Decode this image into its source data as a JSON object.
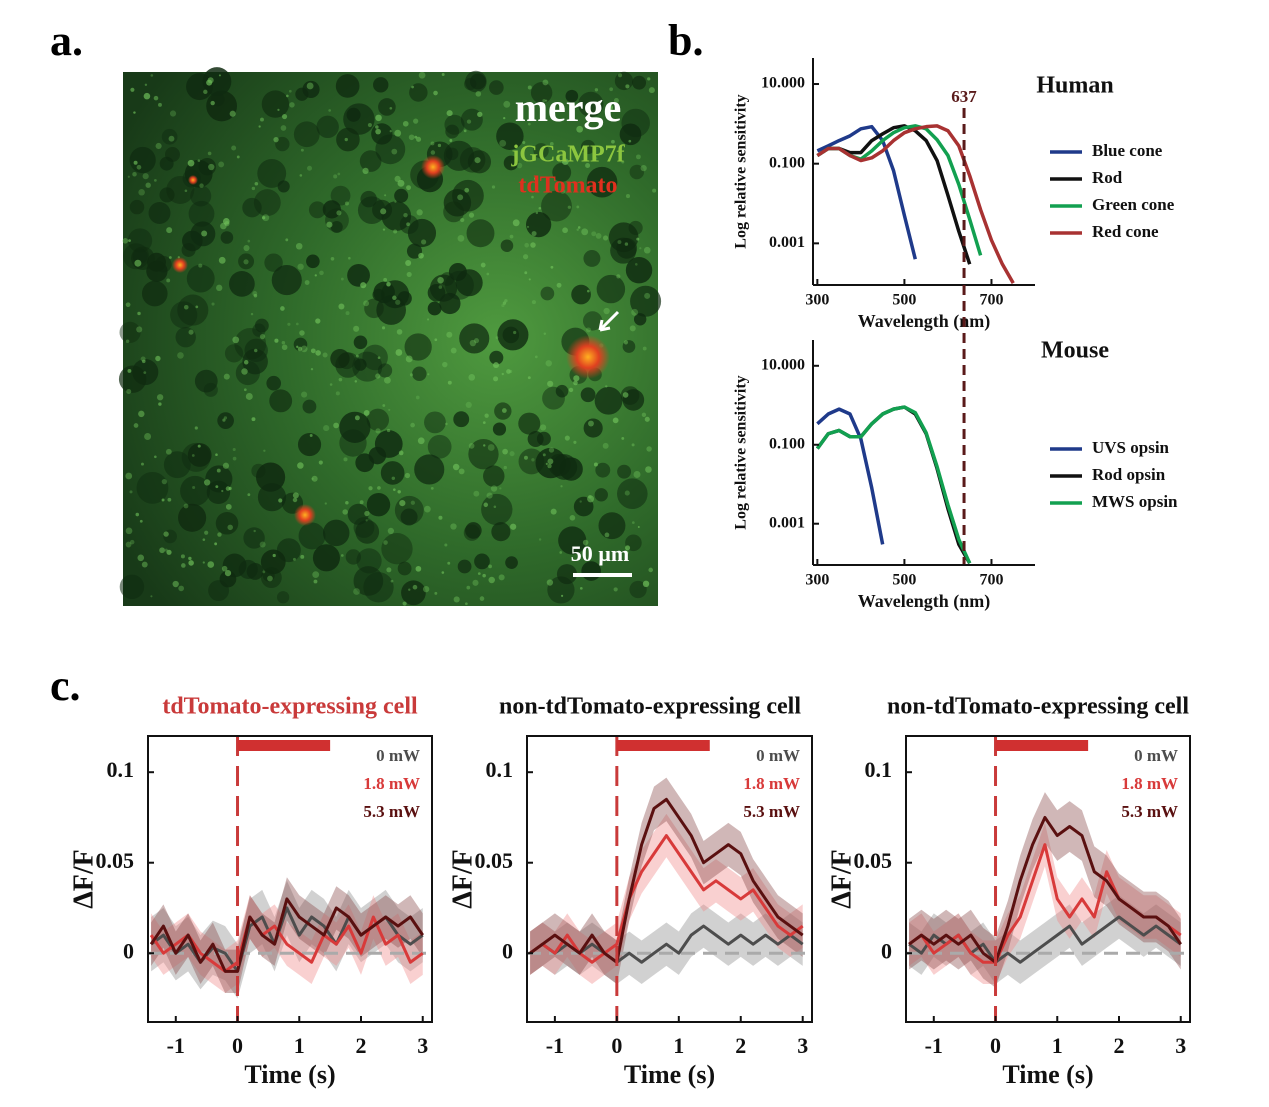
{
  "panel_labels": [
    "a.",
    "b.",
    "c."
  ],
  "image": {
    "labels": [
      {
        "text": "merge",
        "color": "#ffffff"
      },
      {
        "text": "jGCaMP7f",
        "color": "#8cc63f"
      },
      {
        "text": "tdTomato",
        "color": "#e0301e"
      }
    ],
    "scale_bar": "50 µm"
  },
  "chart_data": [
    {
      "type": "line",
      "title": "Human",
      "x_label": "Wavelength (nm)",
      "y_label": "Log relative sensitivity",
      "log_y": true,
      "box": false,
      "legend": "outside right",
      "vline": 637,
      "vline_color": "#5a1a1a",
      "x": [
        300,
        325,
        350,
        375,
        400,
        425,
        450,
        475,
        500,
        525,
        550,
        575,
        600,
        625,
        650,
        675,
        700,
        725,
        750
      ],
      "xlim": [
        290,
        800
      ],
      "xticks": [
        300,
        500,
        700
      ],
      "ylim": [
        9e-05,
        45
      ],
      "yticks": [
        {
          "value": 10,
          "label": "10.000"
        },
        {
          "value": 0.1,
          "label": "0.100"
        },
        {
          "value": 0.001,
          "label": "0.001"
        }
      ],
      "series": [
        {
          "name": "Blue cone",
          "color": "#1f3a8a",
          "values": [
            0.21,
            0.28,
            0.38,
            0.5,
            0.75,
            0.85,
            0.38,
            0.067,
            0.005,
            0.0004,
            null,
            null,
            null,
            null,
            null,
            null,
            null,
            null,
            null
          ]
        },
        {
          "name": "Rod",
          "color": "#111111",
          "values": [
            0.16,
            0.24,
            0.24,
            0.19,
            0.19,
            0.38,
            0.56,
            0.8,
            0.89,
            0.67,
            0.38,
            0.12,
            0.016,
            0.002,
            0.0003,
            null,
            null,
            null,
            null
          ]
        },
        {
          "name": "Green cone",
          "color": "#12a050",
          "values": [
            0.16,
            0.24,
            0.24,
            0.16,
            0.13,
            0.21,
            0.38,
            0.6,
            0.8,
            0.89,
            0.75,
            0.4,
            0.16,
            0.03,
            0.004,
            0.0005,
            null,
            null,
            null
          ]
        },
        {
          "name": "Red cone",
          "color": "#a83232",
          "values": [
            0.16,
            0.24,
            0.24,
            0.16,
            0.12,
            0.14,
            0.21,
            0.38,
            0.6,
            0.75,
            0.85,
            0.89,
            0.67,
            0.28,
            0.05,
            0.007,
            0.0012,
            0.0003,
            0.0001
          ]
        }
      ]
    },
    {
      "type": "line",
      "title": "Mouse",
      "x_label": "Wavelength (nm)",
      "y_label": "Log relative sensitivity",
      "log_y": true,
      "box": false,
      "legend": "outside right",
      "vline": 637,
      "vline_color": "#5a1a1a",
      "x": [
        300,
        325,
        350,
        375,
        400,
        425,
        450,
        475,
        500,
        525,
        550,
        575,
        600,
        625,
        650,
        675,
        700,
        725,
        750
      ],
      "xlim": [
        290,
        800
      ],
      "xticks": [
        300,
        500,
        700
      ],
      "ylim": [
        9e-05,
        45
      ],
      "yticks": [
        {
          "value": 10,
          "label": "10.000"
        },
        {
          "value": 0.1,
          "label": "0.100"
        },
        {
          "value": 0.001,
          "label": "0.001"
        }
      ],
      "series": [
        {
          "name": "UVS opsin",
          "color": "#1f3a8a",
          "values": [
            0.34,
            0.6,
            0.8,
            0.6,
            0.14,
            0.008,
            0.0003,
            null,
            null,
            null,
            null,
            null,
            null,
            null,
            null,
            null,
            null,
            null,
            null
          ]
        },
        {
          "name": "Rod opsin",
          "color": "#111111",
          "values": [
            0.08,
            0.19,
            0.23,
            0.16,
            0.16,
            0.34,
            0.6,
            0.8,
            0.9,
            0.6,
            0.19,
            0.025,
            0.0024,
            0.0003,
            0.0001,
            null,
            null,
            null,
            null
          ]
        },
        {
          "name": "MWS opsin",
          "color": "#12a050",
          "values": [
            0.08,
            0.19,
            0.23,
            0.16,
            0.16,
            0.34,
            0.6,
            0.8,
            0.9,
            0.65,
            0.2,
            0.028,
            0.003,
            0.0004,
            0.0001,
            null,
            null,
            null,
            null
          ]
        }
      ]
    },
    {
      "type": "line",
      "title": "tdTomato-expressing cell",
      "title_color": "#c93a3a",
      "x_label": "Time (s)",
      "y_label": "ΔF/F",
      "log_y": false,
      "box": true,
      "legend": "upper right",
      "vline": 0,
      "vline_color": "#c93a3a",
      "stimulus": [
        0,
        1.5
      ],
      "x": [
        -1.4,
        -1.2,
        -1.0,
        -0.8,
        -0.6,
        -0.4,
        -0.2,
        0,
        0.2,
        0.4,
        0.6,
        0.8,
        1.0,
        1.2,
        1.4,
        1.6,
        1.8,
        2.0,
        2.2,
        2.4,
        2.6,
        2.8,
        3.0
      ],
      "xlim": [
        -1.45,
        3.15
      ],
      "xticks": [
        -1,
        0,
        1,
        2,
        3
      ],
      "ylim": [
        -0.038,
        0.12
      ],
      "yticks": [
        0,
        0.05,
        0.1
      ],
      "series": [
        {
          "name": "0 mW",
          "color": "#4d4d4d",
          "band_color": "#8c8c8c",
          "error": 0.015,
          "values": [
            0.005,
            0.01,
            0,
            0.005,
            -0.005,
            0.003,
            0,
            -0.01,
            0.015,
            0.02,
            0.005,
            0.025,
            0.01,
            0.02,
            0.015,
            0.005,
            0.02,
            0.01,
            0.015,
            0.02,
            0.01,
            0.005,
            0.01
          ]
        },
        {
          "name": "1.8 mW",
          "color": "#d83a3a",
          "band_color": "#f08a8a",
          "error": 0.012,
          "values": [
            0.01,
            0,
            0.005,
            0.01,
            0,
            -0.005,
            -0.01,
            -0.005,
            0.02,
            0.01,
            0.015,
            0.005,
            0,
            -0.005,
            0.01,
            0.005,
            0.015,
            0,
            0.02,
            0.005,
            0.01,
            -0.005,
            0
          ]
        },
        {
          "name": "5.3 mW",
          "color": "#5a1010",
          "band_color": "#8a4a4a",
          "error": 0.012,
          "values": [
            0.005,
            0.015,
            0,
            0.01,
            -0.005,
            0.005,
            -0.01,
            -0.01,
            0.02,
            0.01,
            0.005,
            0.03,
            0.02,
            0.015,
            0.01,
            0.025,
            0.02,
            0.01,
            0.015,
            0.02,
            0.015,
            0.02,
            0.01
          ]
        }
      ]
    },
    {
      "type": "line",
      "title": "non-tdTomato-expressing cell",
      "title_color": "#111111",
      "x_label": "Time (s)",
      "y_label": "ΔF/F",
      "log_y": false,
      "box": true,
      "legend": "upper right",
      "vline": 0,
      "vline_color": "#c93a3a",
      "stimulus": [
        0,
        1.5
      ],
      "x": [
        -1.4,
        -1.2,
        -1.0,
        -0.8,
        -0.6,
        -0.4,
        -0.2,
        0,
        0.2,
        0.4,
        0.6,
        0.8,
        1.0,
        1.2,
        1.4,
        1.6,
        1.8,
        2.0,
        2.2,
        2.4,
        2.6,
        2.8,
        3.0
      ],
      "xlim": [
        -1.45,
        3.15
      ],
      "xticks": [
        -1,
        0,
        1,
        2,
        3
      ],
      "ylim": [
        -0.038,
        0.12
      ],
      "yticks": [
        0,
        0.05,
        0.1
      ],
      "series": [
        {
          "name": "0 mW",
          "color": "#4d4d4d",
          "band_color": "#8c8c8c",
          "error": 0.012,
          "values": [
            0,
            0.005,
            0,
            0.005,
            0,
            0.005,
            0,
            -0.005,
            0,
            -0.005,
            0,
            0.005,
            0,
            0.01,
            0.015,
            0.01,
            0.005,
            0.01,
            0.005,
            0.01,
            0.005,
            0.01,
            0.005
          ]
        },
        {
          "name": "1.8 mW",
          "color": "#d83a3a",
          "band_color": "#f08a8a",
          "error": 0.012,
          "values": [
            0,
            0.005,
            0,
            0.01,
            0,
            -0.005,
            0,
            0.005,
            0.03,
            0.045,
            0.055,
            0.065,
            0.055,
            0.045,
            0.035,
            0.04,
            0.035,
            0.03,
            0.035,
            0.025,
            0.015,
            0.01,
            0.015
          ]
        },
        {
          "name": "5.3 mW",
          "color": "#5a1010",
          "band_color": "#8a4a4a",
          "error": 0.012,
          "values": [
            0,
            0.005,
            0.01,
            0.005,
            0,
            0.01,
            0,
            -0.005,
            0.03,
            0.06,
            0.08,
            0.085,
            0.075,
            0.065,
            0.05,
            0.055,
            0.06,
            0.055,
            0.04,
            0.03,
            0.02,
            0.015,
            0.01
          ]
        }
      ]
    },
    {
      "type": "line",
      "title": "non-tdTomato-expressing cell",
      "title_color": "#111111",
      "x_label": "Time (s)",
      "y_label": "ΔF/F",
      "log_y": false,
      "box": true,
      "legend": "upper right",
      "vline": 0,
      "vline_color": "#c93a3a",
      "stimulus": [
        0,
        1.5
      ],
      "x": [
        -1.4,
        -1.2,
        -1.0,
        -0.8,
        -0.6,
        -0.4,
        -0.2,
        0,
        0.2,
        0.4,
        0.6,
        0.8,
        1.0,
        1.2,
        1.4,
        1.6,
        1.8,
        2.0,
        2.2,
        2.4,
        2.6,
        2.8,
        3.0
      ],
      "xlim": [
        -1.45,
        3.15
      ],
      "xticks": [
        -1,
        0,
        1,
        2,
        3
      ],
      "ylim": [
        -0.038,
        0.12
      ],
      "yticks": [
        0,
        0.05,
        0.1
      ],
      "series": [
        {
          "name": "0 mW",
          "color": "#4d4d4d",
          "band_color": "#8c8c8c",
          "error": 0.012,
          "values": [
            0.005,
            0,
            0.01,
            0.005,
            0.01,
            0,
            0.005,
            -0.005,
            0,
            -0.005,
            0,
            0.005,
            0.01,
            0.015,
            0.005,
            0.01,
            0.015,
            0.02,
            0.015,
            0.01,
            0.015,
            0.01,
            0.005
          ]
        },
        {
          "name": "1.8 mW",
          "color": "#d83a3a",
          "band_color": "#f08a8a",
          "error": 0.012,
          "values": [
            0.005,
            0.01,
            0,
            0.005,
            0.01,
            0,
            -0.005,
            -0.005,
            0.01,
            0.02,
            0.04,
            0.06,
            0.03,
            0.02,
            0.03,
            0.02,
            0.045,
            0.03,
            0.025,
            0.02,
            0.02,
            0.015,
            0.01
          ]
        },
        {
          "name": "5.3 mW",
          "color": "#5a1010",
          "band_color": "#8a4a4a",
          "error": 0.014,
          "values": [
            0.005,
            0.01,
            0.005,
            0.01,
            0.005,
            0.01,
            0,
            -0.005,
            0.015,
            0.04,
            0.06,
            0.075,
            0.065,
            0.07,
            0.065,
            0.045,
            0.04,
            0.03,
            0.025,
            0.02,
            0.02,
            0.015,
            0.005
          ]
        }
      ]
    }
  ]
}
